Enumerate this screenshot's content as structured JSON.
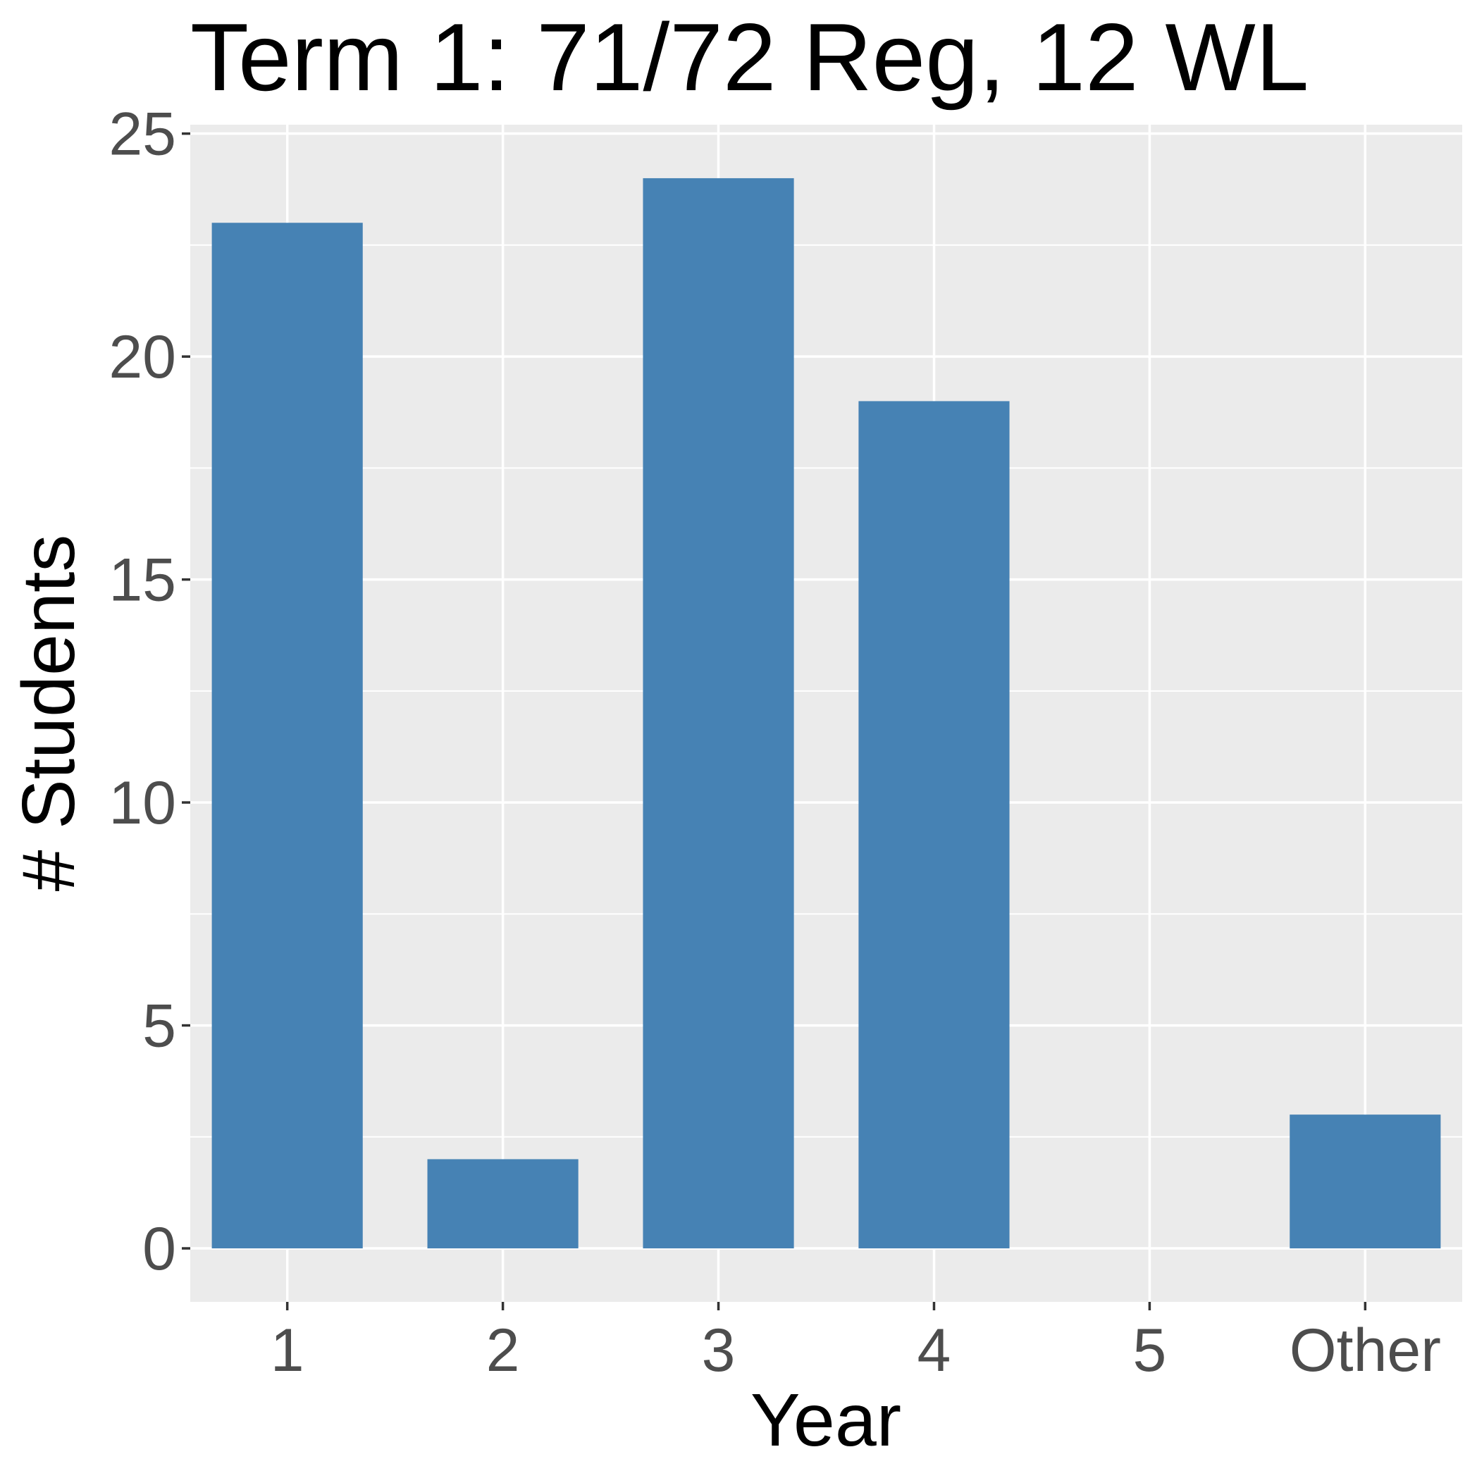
{
  "chart_data": {
    "type": "bar",
    "title": "Term 1: 71/72 Reg, 12 WL",
    "xlabel": "Year",
    "ylabel": "# Students",
    "categories": [
      "1",
      "2",
      "3",
      "4",
      "5",
      "Other"
    ],
    "values": [
      23,
      2,
      24,
      19,
      0,
      3
    ],
    "ylim": [
      -1.2,
      25.2
    ],
    "yticks": [
      0,
      5,
      10,
      15,
      20,
      25
    ],
    "grid": true,
    "legend": "none",
    "colors": {
      "bar": "#4682b4",
      "panel": "#ebebeb",
      "grid": "#ffffff",
      "tick_text": "#4d4d4d"
    }
  }
}
